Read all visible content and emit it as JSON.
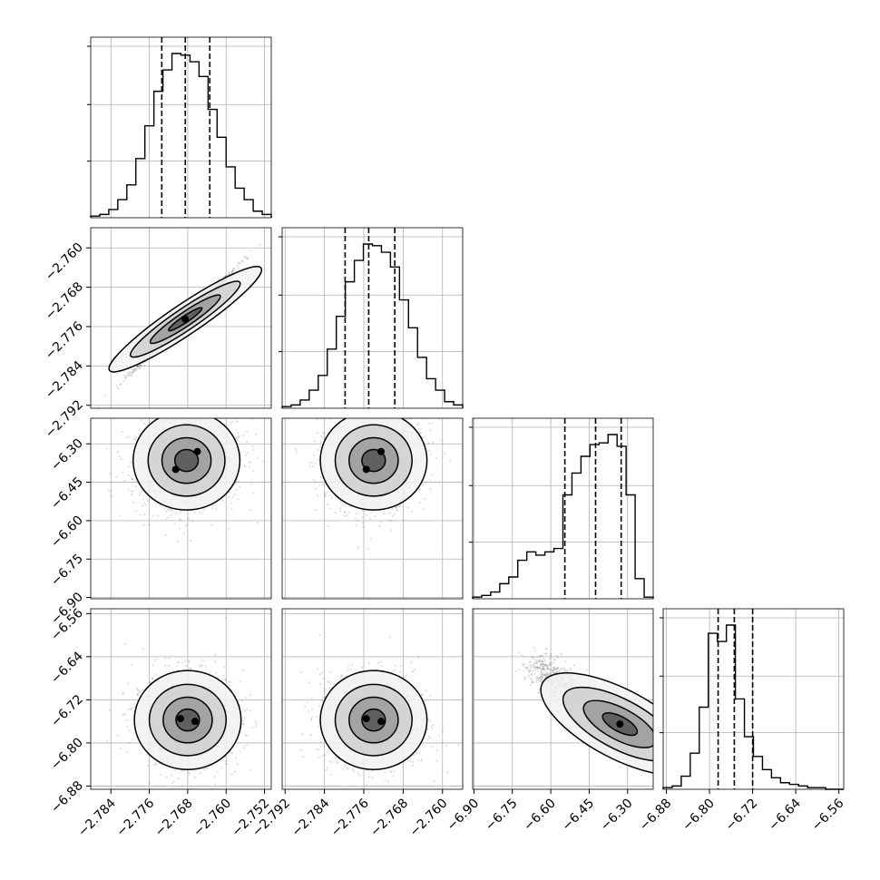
{
  "chart_data": {
    "type": "corner",
    "parameters": [
      {
        "index": 0,
        "range": [
          -2.7882,
          -2.7506
        ],
        "ticks": [
          "-2.784",
          "-2.776",
          "-2.768",
          "-2.760",
          "-2.752"
        ],
        "tick_values": [
          -2.784,
          -2.776,
          -2.768,
          -2.76,
          -2.752
        ],
        "quantiles": [
          -2.7734,
          -2.7685,
          -2.7634
        ]
      },
      {
        "index": 1,
        "range": [
          -2.7926,
          -2.7559
        ],
        "ticks": [
          "-2.792",
          "-2.784",
          "-2.776",
          "-2.768",
          "-2.760"
        ],
        "tick_values": [
          -2.792,
          -2.784,
          -2.776,
          -2.768,
          -2.76
        ],
        "quantiles": [
          -2.7798,
          -2.775,
          -2.7697
        ]
      },
      {
        "index": 2,
        "range": [
          -6.905,
          -6.2
        ],
        "ticks": [
          "-6.90",
          "-6.75",
          "-6.60",
          "-6.45",
          "-6.30"
        ],
        "tick_values": [
          -6.9,
          -6.75,
          -6.6,
          -6.45,
          -6.3
        ],
        "quantiles": [
          -6.545,
          -6.425,
          -6.325
        ]
      },
      {
        "index": 3,
        "range": [
          -6.886,
          -6.551
        ],
        "ticks": [
          "-6.88",
          "-6.80",
          "-6.72",
          "-6.64",
          "-6.56"
        ],
        "tick_values": [
          -6.88,
          -6.8,
          -6.72,
          -6.64,
          -6.56
        ],
        "quantiles": [
          -6.784,
          -6.754,
          -6.72
        ]
      }
    ],
    "histograms": [
      {
        "param": 0,
        "counts": [
          1,
          2,
          5,
          11,
          20,
          36,
          56,
          77,
          90,
          100,
          99,
          95,
          86,
          66,
          49,
          31,
          18,
          11,
          4,
          2
        ]
      },
      {
        "param": 1,
        "counts": [
          1,
          2,
          5,
          11,
          20,
          36,
          56,
          77,
          90,
          100,
          99,
          95,
          86,
          66,
          49,
          31,
          18,
          11,
          4,
          2
        ]
      },
      {
        "param": 2,
        "counts": [
          1,
          2,
          4,
          9,
          13,
          23,
          28,
          26,
          28,
          30,
          62,
          75,
          85,
          92,
          93,
          98,
          91,
          62,
          12,
          1
        ]
      },
      {
        "param": 3,
        "counts": [
          1,
          2,
          8,
          22,
          50,
          95,
          90,
          100,
          55,
          32,
          20,
          12,
          7,
          4,
          3,
          2,
          1,
          1,
          0,
          0
        ]
      }
    ],
    "panels_2d": [
      {
        "x": 0,
        "y": 1,
        "shape": "narrow-diagonal",
        "peak": [
          -2.7685,
          -2.7745
        ]
      },
      {
        "x": 0,
        "y": 2,
        "peaks": [
          [
            -2.7705,
            -6.4
          ],
          [
            -2.766,
            -6.33
          ]
        ]
      },
      {
        "x": 1,
        "y": 2,
        "peaks": [
          [
            -2.7755,
            -6.4
          ],
          [
            -2.7725,
            -6.33
          ]
        ]
      },
      {
        "x": 0,
        "y": 3,
        "peaks": [
          [
            -2.7695,
            -6.755
          ],
          [
            -2.7665,
            -6.76
          ]
        ]
      },
      {
        "x": 1,
        "y": 3,
        "peaks": [
          [
            -2.7755,
            -6.755
          ],
          [
            -2.7725,
            -6.76
          ]
        ]
      },
      {
        "x": 2,
        "y": 3,
        "shape": "anti-correlated",
        "peak": [
          -6.33,
          -6.765
        ]
      }
    ],
    "contour_levels": 4,
    "grid": true,
    "title": "",
    "xlabel": "",
    "ylabel": ""
  }
}
